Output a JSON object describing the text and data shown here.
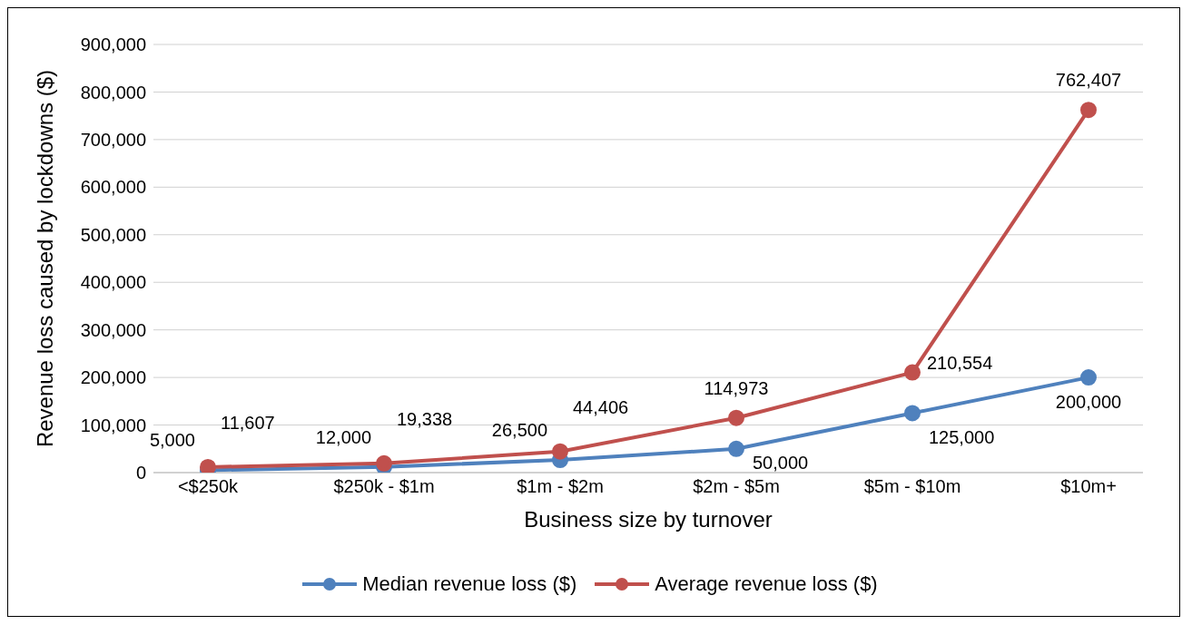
{
  "chart_data": {
    "type": "line",
    "xlabel": "Business size by turnover",
    "ylabel": "Revenue loss caused by lockdowns ($)",
    "categories": [
      "<$250k",
      "$250k - $1m",
      "$1m - $2m",
      "$2m - $5m",
      "$5m - $10m",
      "$10m+"
    ],
    "series": [
      {
        "name": "Median revenue loss ($)",
        "color": "#4f81bd",
        "values": [
          5000,
          12000,
          26500,
          50000,
          125000,
          200000
        ],
        "value_labels": [
          "5,000",
          "12,000",
          "26,500",
          "50,000",
          "125,000",
          "200,000"
        ]
      },
      {
        "name": "Average revenue loss ($)",
        "color": "#c0504d",
        "values": [
          11607,
          19338,
          44406,
          114973,
          210554,
          762407
        ],
        "value_labels": [
          "11,607",
          "19,338",
          "44,406",
          "114,973",
          "210,554",
          "762,407"
        ]
      }
    ],
    "ylim": [
      0,
      900000
    ],
    "yticks": [
      0,
      {
        "value": 100000,
        "label": "100,000"
      },
      {
        "value": 200000,
        "label": "200,000"
      },
      {
        "value": 300000,
        "label": "300,000"
      },
      {
        "value": 400000,
        "label": "400,000"
      },
      {
        "value": 500000,
        "label": "500,000"
      },
      {
        "value": 600000,
        "label": "600,000"
      },
      {
        "value": 700000,
        "label": "700,000"
      },
      {
        "value": 800000,
        "label": "800,000"
      },
      {
        "value": 900000,
        "label": "900,000"
      }
    ],
    "grid": "y",
    "legend": "bottom",
    "marker": "circle",
    "line_style": "solid"
  }
}
